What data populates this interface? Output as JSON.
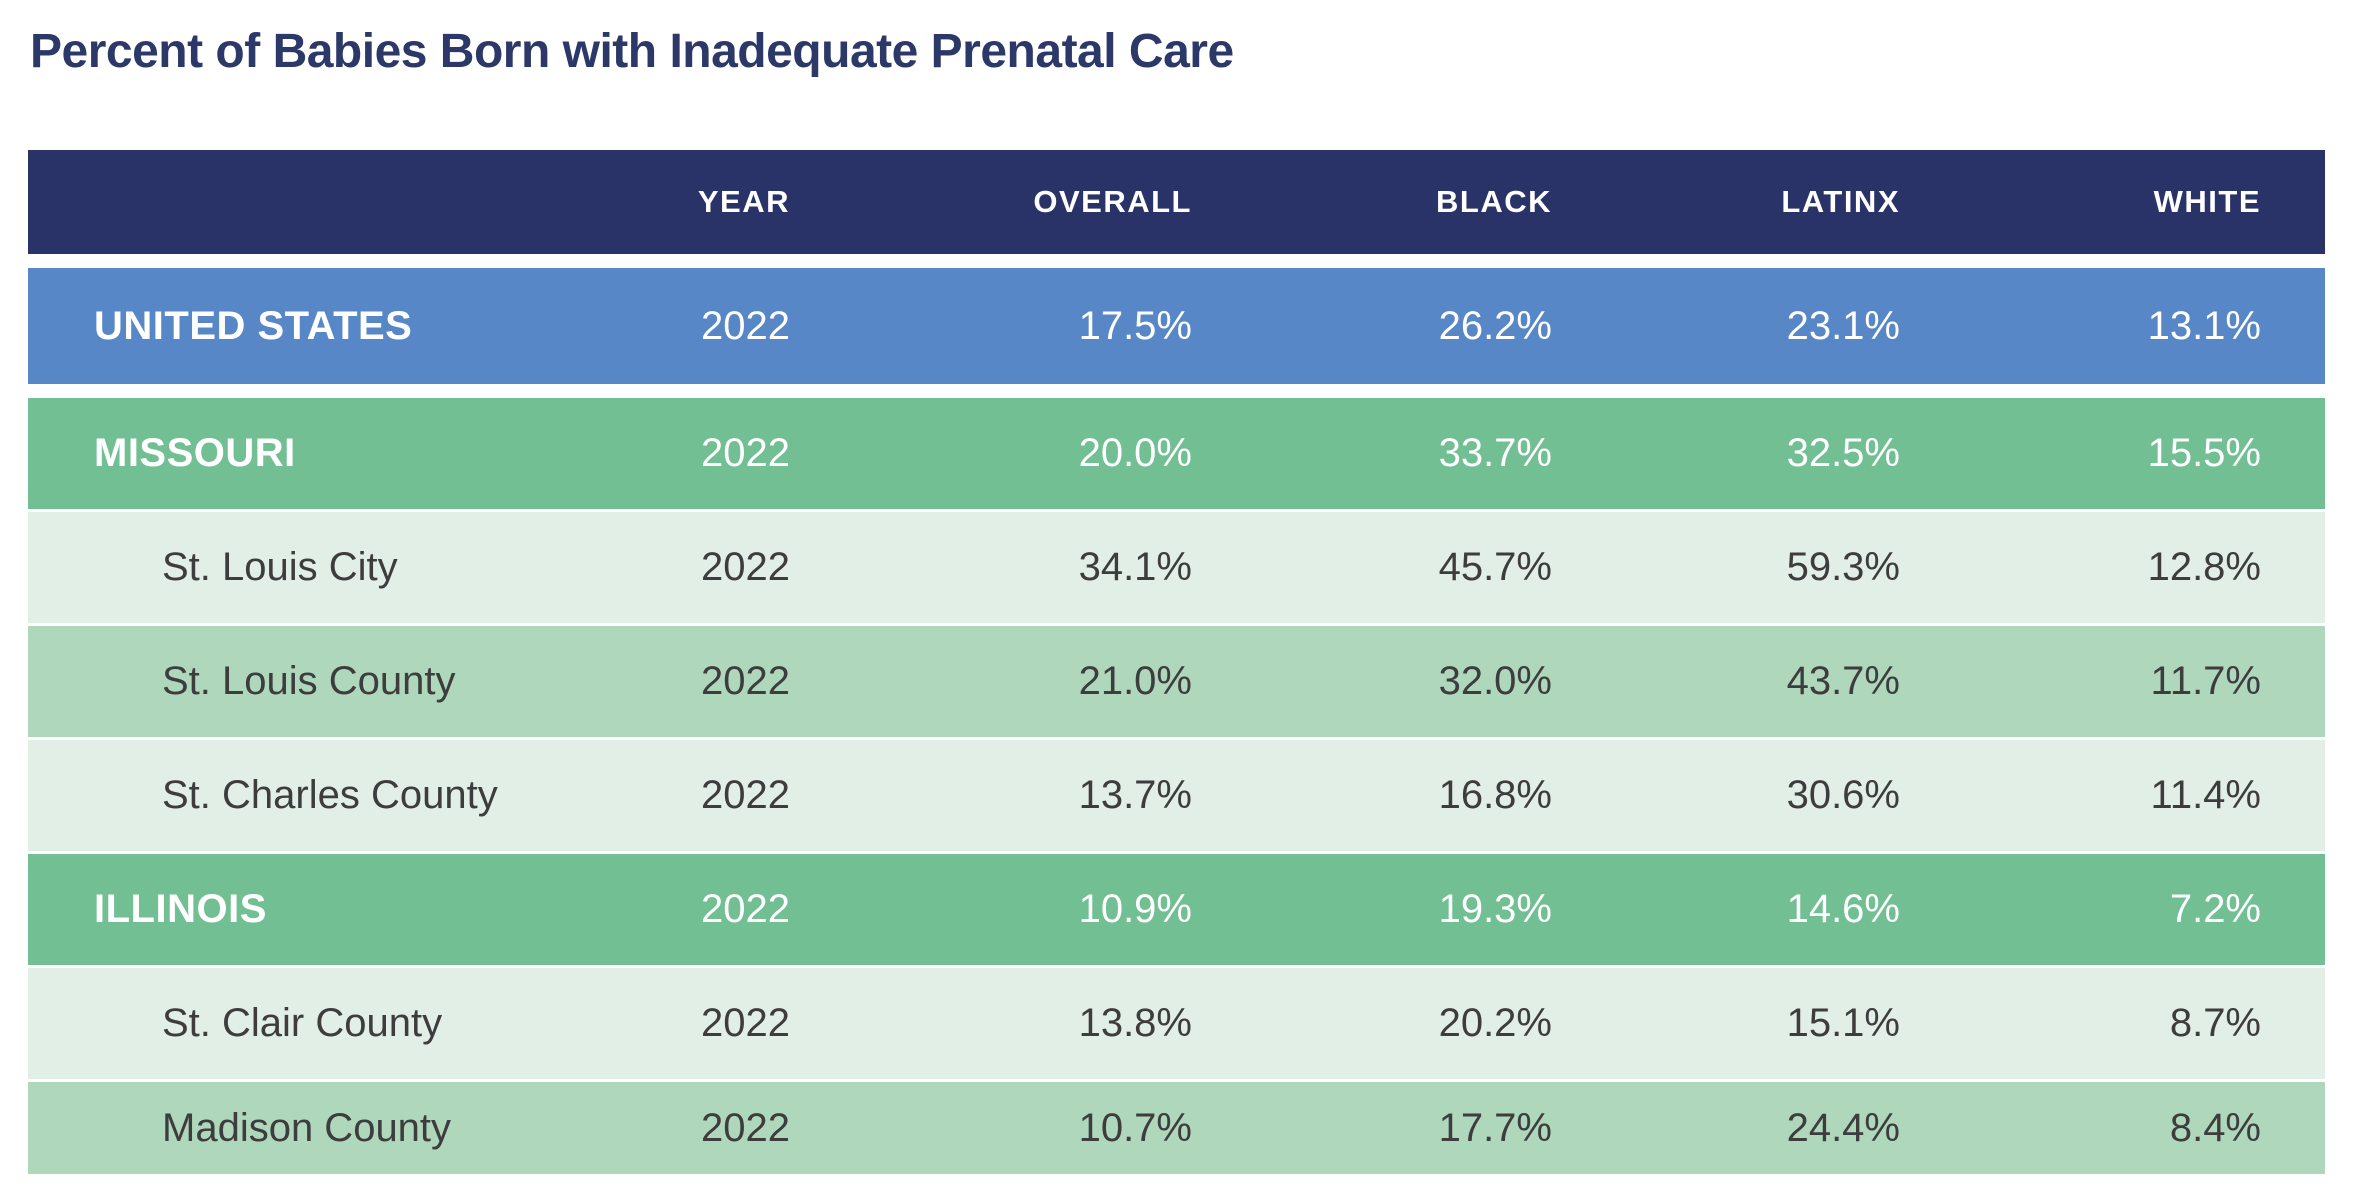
{
  "title": "Percent of Babies Born with Inadequate Prenatal Care",
  "chart_data": {
    "type": "table",
    "title": "Percent of Babies Born with Inadequate Prenatal Care",
    "columns": [
      "",
      "YEAR",
      "OVERALL",
      "BLACK",
      "LATINX",
      "WHITE"
    ],
    "rows": [
      {
        "label": "UNITED STATES",
        "level": "national",
        "year": "2022",
        "overall": "17.5%",
        "black": "26.2%",
        "latinx": "23.1%",
        "white": "13.1%"
      },
      {
        "label": "MISSOURI",
        "level": "state",
        "year": "2022",
        "overall": "20.0%",
        "black": "33.7%",
        "latinx": "32.5%",
        "white": "15.5%"
      },
      {
        "label": "St. Louis City",
        "level": "county",
        "year": "2022",
        "overall": "34.1%",
        "black": "45.7%",
        "latinx": "59.3%",
        "white": "12.8%"
      },
      {
        "label": "St. Louis County",
        "level": "county",
        "year": "2022",
        "overall": "21.0%",
        "black": "32.0%",
        "latinx": "43.7%",
        "white": "11.7%"
      },
      {
        "label": "St. Charles County",
        "level": "county",
        "year": "2022",
        "overall": "13.7%",
        "black": "16.8%",
        "latinx": "30.6%",
        "white": "11.4%"
      },
      {
        "label": "ILLINOIS",
        "level": "state",
        "year": "2022",
        "overall": "10.9%",
        "black": "19.3%",
        "latinx": "14.6%",
        "white": "7.2%"
      },
      {
        "label": "St. Clair County",
        "level": "county",
        "year": "2022",
        "overall": "13.8%",
        "black": "20.2%",
        "latinx": "15.1%",
        "white": "8.7%"
      },
      {
        "label": "Madison County",
        "level": "county",
        "year": "2022",
        "overall": "10.7%",
        "black": "17.7%",
        "latinx": "24.4%",
        "white": "8.4%"
      }
    ]
  },
  "colors": {
    "title_text": "#2c3968",
    "header_bg": "#2a3368",
    "header_text": "#ffffff",
    "national_row_bg": "#5787c6",
    "state_row_bg": "#72bf94",
    "county_row_light_bg": "#e2efe6",
    "county_row_medium_bg": "#aed7bc",
    "dark_row_text": "#ffffff",
    "county_row_text": "#3d3d3d",
    "page_bg": "#ffffff"
  }
}
